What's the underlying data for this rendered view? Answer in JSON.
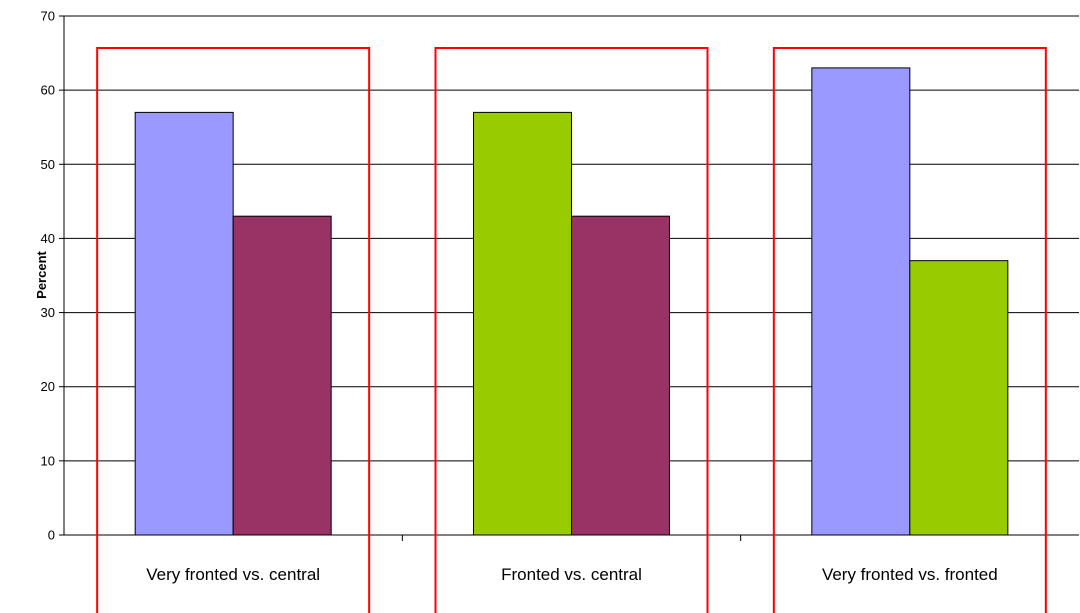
{
  "chart_data": {
    "type": "bar",
    "title": "",
    "xlabel": "",
    "ylabel": "Percent",
    "ylim": [
      0,
      70
    ],
    "yticks": [
      0,
      10,
      20,
      30,
      40,
      50,
      60,
      70
    ],
    "grid": true,
    "legend": "none",
    "categories": [
      "Very fronted vs. central",
      "Fronted vs. central",
      "Very fronted vs. fronted"
    ],
    "groups": [
      {
        "category": "Very fronted vs. central",
        "bars": [
          {
            "value": 57,
            "color": "#9999ff"
          },
          {
            "value": 43,
            "color": "#993366"
          }
        ]
      },
      {
        "category": "Fronted vs. central",
        "bars": [
          {
            "value": 57,
            "color": "#99cc00"
          },
          {
            "value": 43,
            "color": "#993366"
          }
        ]
      },
      {
        "category": "Very fronted vs. fronted",
        "bars": [
          {
            "value": 63,
            "color": "#9999ff"
          },
          {
            "value": 37,
            "color": "#99cc00"
          }
        ]
      }
    ],
    "highlight_box_color": "#ff0000"
  }
}
